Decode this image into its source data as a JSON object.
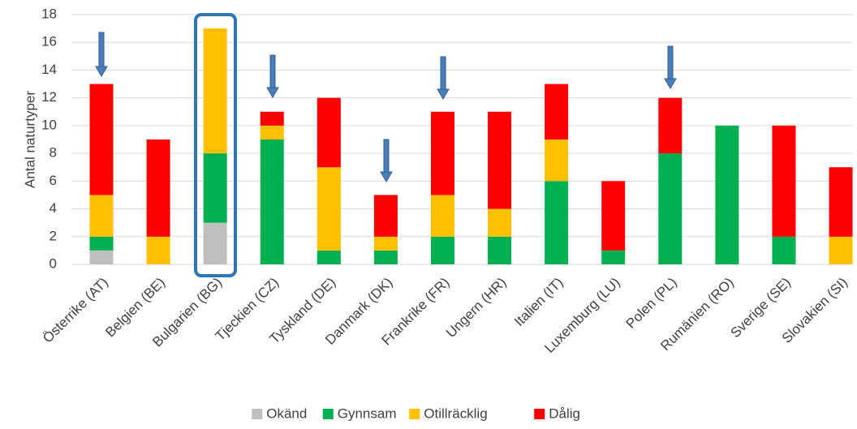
{
  "chart_data": {
    "type": "stacked_bar",
    "y_label": "Antal naturtyper",
    "categories": [
      "Österrike (AT)",
      "Belgien (BE)",
      "Bulgarien (BG)",
      "Tjeckien (CZ)",
      "Tyskland (DE)",
      "Danmark (DK)",
      "Frankrike (FR)",
      "Ungern (HR)",
      "Italien (IT)",
      "Luxemburg (LU)",
      "Polen (PL)",
      "Rumänien (RO)",
      "Sverige (SE)",
      "Slovakien (SI)"
    ],
    "series": [
      {
        "name": "Okänd",
        "color": "#bfbfbf",
        "values": [
          1,
          0,
          3,
          0,
          0,
          0,
          0,
          0,
          0,
          0,
          0,
          0,
          0,
          0
        ]
      },
      {
        "name": "Gynnsam",
        "color": "#00b050",
        "values": [
          1,
          0,
          5,
          9,
          1,
          1,
          2,
          2,
          6,
          1,
          8,
          10,
          2,
          0
        ]
      },
      {
        "name": "Otillräcklig",
        "color": "#ffc000",
        "values": [
          3,
          2,
          9,
          1,
          6,
          1,
          3,
          2,
          3,
          0,
          0,
          0,
          0,
          2
        ]
      },
      {
        "name": "Dålig",
        "color": "#ff0000",
        "values": [
          8,
          7,
          0,
          1,
          5,
          3,
          6,
          7,
          4,
          5,
          4,
          0,
          8,
          5
        ]
      }
    ],
    "ylim": [
      0,
      18
    ],
    "yticks": [
      0,
      2,
      4,
      6,
      8,
      10,
      12,
      14,
      16,
      18
    ],
    "grid": true,
    "legend": "bottom"
  }
}
